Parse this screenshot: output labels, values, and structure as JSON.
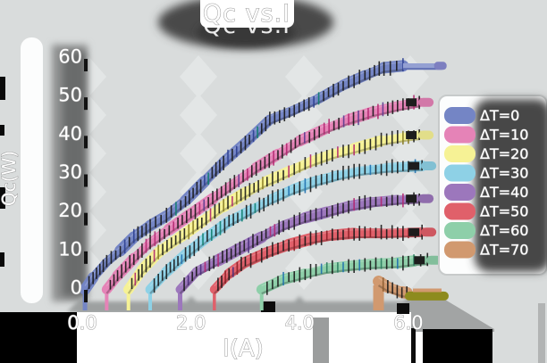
{
  "figure": {
    "title": "Qc vs.I",
    "background": "#d9dcdc"
  },
  "chart_data": {
    "type": "line",
    "title": "Qc vs.I",
    "xlabel": "I(A)",
    "ylabel": "Qc(W)",
    "x_ticks": [
      "0.0",
      "2.0",
      "4.0",
      "6.0"
    ],
    "x_tick_values": [
      0,
      2,
      4,
      6
    ],
    "y_ticks": [
      "0",
      "10",
      "20",
      "30",
      "40",
      "50",
      "60"
    ],
    "y_tick_values": [
      0,
      10,
      20,
      30,
      40,
      50,
      60
    ],
    "xlim": [
      -0.15,
      6.85
    ],
    "ylim": [
      -7,
      62
    ],
    "grid": "faint sketchy vertical gridlines at x ticks",
    "legend_position": "right",
    "style": "thick sketchy ribbons with dark hatch ticks, white outlined labels on dark shadow blobs",
    "series": [
      {
        "name": "ΔT=0",
        "color": "#7485c5",
        "points": [
          [
            0.05,
            -0.6
          ],
          [
            0.2,
            2.5
          ],
          [
            0.45,
            6.5
          ],
          [
            0.7,
            9.5
          ],
          [
            0.95,
            13
          ],
          [
            1.25,
            16
          ],
          [
            1.55,
            18.5
          ],
          [
            1.9,
            22.5
          ],
          [
            2.25,
            27.5
          ],
          [
            2.6,
            32.5
          ],
          [
            3.0,
            37.5
          ],
          [
            3.45,
            43.5
          ],
          [
            3.9,
            46
          ],
          [
            4.35,
            49
          ],
          [
            4.8,
            52.5
          ],
          [
            5.2,
            55
          ],
          [
            5.55,
            57
          ],
          [
            5.9,
            57.5
          ]
        ]
      },
      {
        "name": "ΔT=10",
        "color": "#e583b7",
        "points": [
          [
            0.45,
            -0.6
          ],
          [
            0.65,
            3
          ],
          [
            0.95,
            7.5
          ],
          [
            1.25,
            11.5
          ],
          [
            1.6,
            15
          ],
          [
            2.0,
            19
          ],
          [
            2.4,
            23
          ],
          [
            2.8,
            27
          ],
          [
            3.2,
            31
          ],
          [
            3.6,
            34.5
          ],
          [
            4.0,
            38
          ],
          [
            4.45,
            41
          ],
          [
            4.9,
            43.5
          ],
          [
            5.35,
            45.5
          ],
          [
            5.8,
            47
          ],
          [
            6.2,
            48
          ]
        ]
      },
      {
        "name": "ΔT=20",
        "color": "#f6f295",
        "points": [
          [
            0.85,
            -0.6
          ],
          [
            1.1,
            4.5
          ],
          [
            1.4,
            9
          ],
          [
            1.8,
            13
          ],
          [
            2.2,
            17
          ],
          [
            2.6,
            21
          ],
          [
            3.0,
            24.5
          ],
          [
            3.4,
            27.5
          ],
          [
            3.8,
            30
          ],
          [
            4.2,
            32.5
          ],
          [
            4.6,
            34.5
          ],
          [
            5.0,
            36
          ],
          [
            5.5,
            38
          ],
          [
            6.0,
            39.2
          ],
          [
            6.2,
            39.5
          ]
        ]
      },
      {
        "name": "ΔT=30",
        "color": "#8ed1e6",
        "points": [
          [
            1.25,
            -0.6
          ],
          [
            1.55,
            4
          ],
          [
            1.9,
            8.5
          ],
          [
            2.3,
            13
          ],
          [
            2.7,
            17
          ],
          [
            3.1,
            20
          ],
          [
            3.5,
            23
          ],
          [
            3.9,
            25.5
          ],
          [
            4.3,
            27.5
          ],
          [
            4.7,
            29
          ],
          [
            5.1,
            30.2
          ],
          [
            5.6,
            31
          ],
          [
            6.0,
            31.3
          ],
          [
            6.25,
            31.5
          ]
        ]
      },
      {
        "name": "ΔT=40",
        "color": "#9c77bc",
        "points": [
          [
            1.8,
            -0.6
          ],
          [
            2.1,
            4
          ],
          [
            2.5,
            7
          ],
          [
            2.9,
            10
          ],
          [
            3.3,
            13
          ],
          [
            3.7,
            16
          ],
          [
            4.1,
            18
          ],
          [
            4.5,
            19.5
          ],
          [
            4.9,
            21
          ],
          [
            5.3,
            22
          ],
          [
            5.8,
            22.7
          ],
          [
            6.2,
            23
          ]
        ]
      },
      {
        "name": "ΔT=50",
        "color": "#e0606a",
        "points": [
          [
            2.43,
            -0.6
          ],
          [
            2.7,
            3.5
          ],
          [
            3.0,
            6.5
          ],
          [
            3.4,
            9
          ],
          [
            3.8,
            11
          ],
          [
            4.2,
            12.5
          ],
          [
            4.6,
            13.5
          ],
          [
            5.0,
            14
          ],
          [
            5.5,
            14
          ],
          [
            6.0,
            14.2
          ],
          [
            6.25,
            14.3
          ]
        ]
      },
      {
        "name": "ΔT=60",
        "color": "#8ecfa9",
        "points": [
          [
            3.3,
            -0.6
          ],
          [
            3.7,
            2
          ],
          [
            4.1,
            3.5
          ],
          [
            4.5,
            4.8
          ],
          [
            4.9,
            5.5
          ],
          [
            5.3,
            6
          ],
          [
            5.8,
            6.3
          ],
          [
            6.1,
            6.8
          ],
          [
            6.35,
            7
          ]
        ]
      },
      {
        "name": "ΔT=70",
        "color": "#d1996f",
        "points": [
          [
            5.45,
            1.5
          ],
          [
            5.62,
            0
          ],
          [
            5.88,
            -1.3
          ],
          [
            5.97,
            -1.5
          ]
        ]
      }
    ]
  },
  "legend": {
    "items": [
      {
        "label": "ΔT=0",
        "color": "#7485c5"
      },
      {
        "label": "ΔT=10",
        "color": "#e583b7"
      },
      {
        "label": "ΔT=20",
        "color": "#f6f295"
      },
      {
        "label": "ΔT=30",
        "color": "#8ed1e6"
      },
      {
        "label": "ΔT=40",
        "color": "#9c77bc"
      },
      {
        "label": "ΔT=50",
        "color": "#e0606a"
      },
      {
        "label": "ΔT=60",
        "color": "#8ecfa9"
      },
      {
        "label": "ΔT=70",
        "color": "#d1996f"
      }
    ]
  },
  "colors": {
    "background": "#d9dcdc",
    "grid_diamond": "#e3e6e6",
    "hatch_dark": "#191919",
    "shadow_dark": "#474747",
    "shadow_mid": "#8f9191",
    "scallop_gray": "#9da0a0",
    "panel_white": "#fcfdfd",
    "panel_border": "#c7caca",
    "olive_tail": "#8d8b1e",
    "blue_tail": "#94a0d2",
    "text_white": "#ffffff",
    "text_outline": "#989898"
  }
}
